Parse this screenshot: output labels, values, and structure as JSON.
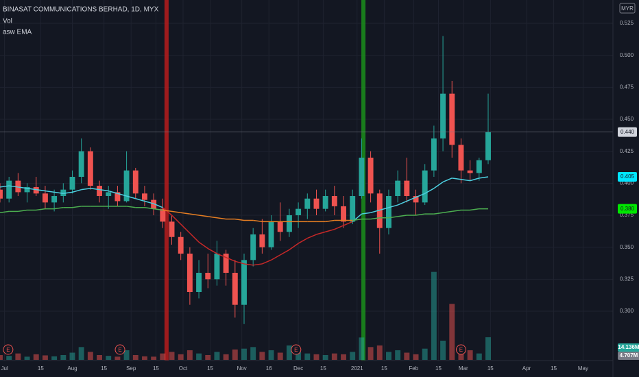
{
  "chart_data": {
    "type": "candlestick",
    "title": "BINASAT COMMUNICATIONS BERHAD, 1D, MYX",
    "indicators": [
      "Vol",
      "asw EMA"
    ],
    "currency": "MYR",
    "up_color": "#26a69a",
    "down_color": "#ef5350",
    "grid": true,
    "xlim": [
      0,
      270
    ],
    "ylim": [
      0.2593,
      0.5432
    ],
    "yticks": [
      {
        "value": 0.3,
        "label": "0.300"
      },
      {
        "value": 0.325,
        "label": "0.325"
      },
      {
        "value": 0.35,
        "label": "0.350"
      },
      {
        "value": 0.375,
        "label": "0.375"
      },
      {
        "value": 0.4,
        "label": "0.400"
      },
      {
        "value": 0.425,
        "label": "0.425"
      },
      {
        "value": 0.45,
        "label": "0.450"
      },
      {
        "value": 0.475,
        "label": "0.475"
      },
      {
        "value": 0.5,
        "label": "0.500"
      },
      {
        "value": 0.525,
        "label": "0.525"
      }
    ],
    "xticks": [
      {
        "value": 2,
        "label": "Jul"
      },
      {
        "value": 18,
        "label": "15"
      },
      {
        "value": 32,
        "label": "Aug"
      },
      {
        "value": 46,
        "label": "15"
      },
      {
        "value": 58,
        "label": "Sep"
      },
      {
        "value": 69,
        "label": "15"
      },
      {
        "value": 81,
        "label": "Oct"
      },
      {
        "value": 93,
        "label": "15"
      },
      {
        "value": 107,
        "label": "Nov"
      },
      {
        "value": 119,
        "label": "16"
      },
      {
        "value": 132,
        "label": "Dec"
      },
      {
        "value": 143,
        "label": "15"
      },
      {
        "value": 158,
        "label": "2021"
      },
      {
        "value": 170,
        "label": "15"
      },
      {
        "value": 183,
        "label": "Feb"
      },
      {
        "value": 194,
        "label": "15"
      },
      {
        "value": 205,
        "label": "Mar"
      },
      {
        "value": 217,
        "label": "15"
      },
      {
        "value": 233,
        "label": "Apr"
      },
      {
        "value": 245,
        "label": "15"
      },
      {
        "value": 258,
        "label": "May"
      }
    ],
    "x": [
      0,
      4,
      8,
      12,
      16,
      20,
      24,
      28,
      32,
      36,
      40,
      44,
      48,
      52,
      56,
      60,
      64,
      68,
      72,
      76,
      80,
      84,
      88,
      92,
      96,
      100,
      104,
      108,
      112,
      116,
      120,
      124,
      128,
      132,
      136,
      140,
      144,
      148,
      152,
      156,
      160,
      164,
      168,
      172,
      176,
      180,
      184,
      188,
      192,
      196,
      200,
      204,
      208,
      212,
      216
    ],
    "open": [
      0.395,
      0.388,
      0.402,
      0.393,
      0.397,
      0.392,
      0.385,
      0.39,
      0.395,
      0.405,
      0.425,
      0.398,
      0.39,
      0.393,
      0.386,
      0.41,
      0.392,
      0.387,
      0.38,
      0.37,
      0.358,
      0.345,
      0.315,
      0.33,
      0.325,
      0.345,
      0.33,
      0.305,
      0.34,
      0.36,
      0.35,
      0.37,
      0.362,
      0.375,
      0.38,
      0.388,
      0.38,
      0.39,
      0.382,
      0.37,
      0.39,
      0.42,
      0.392,
      0.365,
      0.39,
      0.402,
      0.39,
      0.385,
      0.41,
      0.435,
      0.47,
      0.43,
      0.41,
      0.408,
      0.418
    ],
    "high": [
      0.4,
      0.405,
      0.408,
      0.4,
      0.405,
      0.398,
      0.395,
      0.4,
      0.41,
      0.435,
      0.428,
      0.402,
      0.398,
      0.398,
      0.425,
      0.412,
      0.398,
      0.392,
      0.388,
      0.375,
      0.362,
      0.35,
      0.34,
      0.345,
      0.355,
      0.348,
      0.34,
      0.345,
      0.365,
      0.372,
      0.375,
      0.385,
      0.38,
      0.385,
      0.392,
      0.395,
      0.395,
      0.398,
      0.39,
      0.395,
      0.435,
      0.425,
      0.395,
      0.395,
      0.41,
      0.42,
      0.395,
      0.415,
      0.445,
      0.515,
      0.48,
      0.435,
      0.418,
      0.42,
      0.47
    ],
    "low": [
      0.385,
      0.385,
      0.39,
      0.385,
      0.39,
      0.38,
      0.378,
      0.385,
      0.392,
      0.4,
      0.395,
      0.385,
      0.38,
      0.382,
      0.385,
      0.388,
      0.382,
      0.375,
      0.365,
      0.352,
      0.34,
      0.305,
      0.31,
      0.318,
      0.32,
      0.32,
      0.295,
      0.29,
      0.335,
      0.345,
      0.348,
      0.355,
      0.358,
      0.365,
      0.372,
      0.375,
      0.378,
      0.375,
      0.365,
      0.368,
      0.388,
      0.385,
      0.345,
      0.36,
      0.385,
      0.385,
      0.375,
      0.383,
      0.405,
      0.425,
      0.42,
      0.4,
      0.402,
      0.402,
      0.415
    ],
    "close": [
      0.388,
      0.402,
      0.393,
      0.397,
      0.392,
      0.385,
      0.39,
      0.395,
      0.405,
      0.425,
      0.398,
      0.39,
      0.393,
      0.386,
      0.41,
      0.392,
      0.387,
      0.38,
      0.37,
      0.358,
      0.345,
      0.315,
      0.33,
      0.325,
      0.345,
      0.33,
      0.305,
      0.34,
      0.36,
      0.35,
      0.37,
      0.362,
      0.375,
      0.38,
      0.388,
      0.38,
      0.39,
      0.382,
      0.37,
      0.39,
      0.42,
      0.392,
      0.365,
      0.39,
      0.402,
      0.39,
      0.385,
      0.41,
      0.435,
      0.47,
      0.43,
      0.41,
      0.408,
      0.418,
      0.44
    ],
    "volume": [
      3000000,
      2500000,
      4000000,
      2000000,
      3500000,
      2800000,
      2200000,
      3000000,
      4500000,
      8000000,
      5000000,
      3000000,
      2500000,
      2000000,
      6000000,
      3000000,
      2200000,
      2000000,
      4000000,
      5000000,
      3500000,
      6000000,
      4000000,
      3000000,
      5000000,
      3500000,
      6500000,
      7000000,
      8000000,
      5000000,
      6000000,
      4500000,
      9000000,
      5000000,
      4000000,
      3500000,
      3000000,
      4000000,
      3500000,
      5000000,
      14000000,
      8000000,
      9000000,
      5000000,
      6000000,
      4500000,
      3500000,
      7000000,
      55000000,
      12000000,
      35000000,
      9000000,
      6000000,
      4000000,
      14136000
    ],
    "vlim": [
      0,
      60000000
    ],
    "volume_labels": [
      {
        "value": 14136000,
        "label": "14.136M",
        "color": "#26a69a"
      },
      {
        "value": 4707000,
        "label": "4.707M",
        "color": "#787b86"
      }
    ],
    "lines": [
      {
        "color_up": "#4dd0e1",
        "color_down": "#c62828",
        "values": [
          0.397,
          0.398,
          0.397,
          0.396,
          0.395,
          0.394,
          0.393,
          0.392,
          0.393,
          0.395,
          0.396,
          0.395,
          0.394,
          0.392,
          0.39,
          0.388,
          0.386,
          0.384,
          0.381,
          0.375,
          0.368,
          0.361,
          0.354,
          0.349,
          0.345,
          0.342,
          0.339,
          0.337,
          0.336,
          0.337,
          0.34,
          0.344,
          0.348,
          0.353,
          0.357,
          0.36,
          0.362,
          0.364,
          0.367,
          0.37,
          0.376,
          0.377,
          0.379,
          0.381,
          0.383,
          0.386,
          0.389,
          0.392,
          0.396,
          0.401,
          0.404,
          0.403,
          0.402,
          0.404,
          0.405
        ]
      },
      {
        "color_up": "#4caf50",
        "color_down": "#e67e22",
        "values": [
          0.377,
          0.378,
          0.378,
          0.379,
          0.379,
          0.38,
          0.38,
          0.381,
          0.381,
          0.382,
          0.382,
          0.382,
          0.382,
          0.382,
          0.382,
          0.381,
          0.381,
          0.38,
          0.379,
          0.378,
          0.377,
          0.376,
          0.375,
          0.374,
          0.373,
          0.372,
          0.372,
          0.371,
          0.371,
          0.37,
          0.37,
          0.37,
          0.37,
          0.37,
          0.37,
          0.37,
          0.37,
          0.371,
          0.371,
          0.371,
          0.372,
          0.372,
          0.373,
          0.373,
          0.374,
          0.375,
          0.375,
          0.376,
          0.376,
          0.377,
          0.378,
          0.379,
          0.379,
          0.38,
          0.38
        ]
      }
    ],
    "price_labels": [
      {
        "value": 0.44,
        "label": "0.440",
        "color": "#d1d4dc",
        "text_color": "#131722"
      },
      {
        "value": 0.405,
        "label": "0.405",
        "color": "#00e5ff",
        "text_color": "#131722"
      },
      {
        "value": 0.38,
        "label": "0.380",
        "color": "#00e600",
        "text_color": "#131722"
      }
    ],
    "highlights": [
      {
        "x": 73.7,
        "color": "#b71c1c"
      },
      {
        "x": 160.8,
        "color": "#1b8e1b"
      }
    ],
    "earnings": [
      {
        "x": 3.6,
        "label": "E"
      },
      {
        "x": 53.1,
        "label": "E"
      },
      {
        "x": 131,
        "label": "E"
      },
      {
        "x": 204,
        "label": "E"
      }
    ]
  }
}
